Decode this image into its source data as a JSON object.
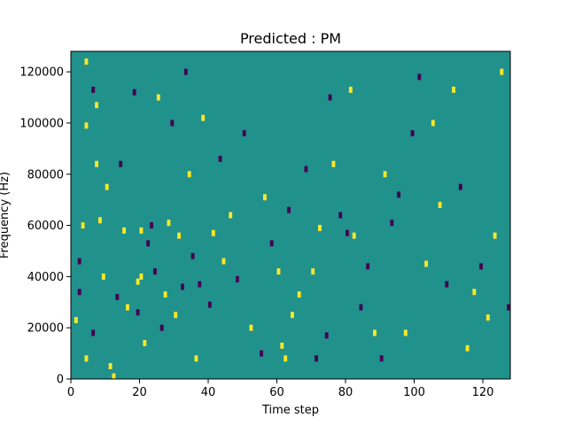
{
  "chart_data": {
    "type": "heatmap",
    "title": "Predicted : PM",
    "xlabel": "Time step",
    "ylabel": "Frequency (Hz)",
    "xlim": [
      0,
      128
    ],
    "ylim": [
      0,
      128000
    ],
    "x_ticks": [
      0,
      20,
      40,
      60,
      80,
      100,
      120
    ],
    "y_ticks": [
      0,
      20000,
      40000,
      60000,
      80000,
      100000,
      120000
    ],
    "x_tick_labels": [
      "0",
      "20",
      "40",
      "60",
      "80",
      "100",
      "120"
    ],
    "y_tick_labels": [
      "0",
      "20000",
      "40000",
      "60000",
      "80000",
      "100000",
      "120000"
    ],
    "colors": {
      "background": "#21918c",
      "high": "#fde725",
      "low": "#440154"
    },
    "grid": false,
    "cells": [
      {
        "t": 1,
        "f": 23000,
        "level": "high"
      },
      {
        "t": 2,
        "f": 46000,
        "level": "low"
      },
      {
        "t": 2,
        "f": 34000,
        "level": "low"
      },
      {
        "t": 3,
        "f": 60000,
        "level": "high"
      },
      {
        "t": 4,
        "f": 8000,
        "level": "high"
      },
      {
        "t": 4,
        "f": 99000,
        "level": "high"
      },
      {
        "t": 4,
        "f": 124000,
        "level": "high"
      },
      {
        "t": 6,
        "f": 113000,
        "level": "low"
      },
      {
        "t": 6,
        "f": 18000,
        "level": "low"
      },
      {
        "t": 7,
        "f": 107000,
        "level": "high"
      },
      {
        "t": 7,
        "f": 84000,
        "level": "high"
      },
      {
        "t": 8,
        "f": 62000,
        "level": "high"
      },
      {
        "t": 9,
        "f": 40000,
        "level": "high"
      },
      {
        "t": 10,
        "f": 75000,
        "level": "high"
      },
      {
        "t": 11,
        "f": 5000,
        "level": "high"
      },
      {
        "t": 12,
        "f": 1000,
        "level": "high"
      },
      {
        "t": 13,
        "f": 32000,
        "level": "low"
      },
      {
        "t": 14,
        "f": 84000,
        "level": "low"
      },
      {
        "t": 15,
        "f": 58000,
        "level": "high"
      },
      {
        "t": 16,
        "f": 28000,
        "level": "high"
      },
      {
        "t": 18,
        "f": 112000,
        "level": "low"
      },
      {
        "t": 19,
        "f": 26000,
        "level": "low"
      },
      {
        "t": 19,
        "f": 38000,
        "level": "high"
      },
      {
        "t": 20,
        "f": 40000,
        "level": "high"
      },
      {
        "t": 20,
        "f": 58000,
        "level": "high"
      },
      {
        "t": 21,
        "f": 14000,
        "level": "high"
      },
      {
        "t": 22,
        "f": 53000,
        "level": "low"
      },
      {
        "t": 23,
        "f": 60000,
        "level": "low"
      },
      {
        "t": 24,
        "f": 42000,
        "level": "low"
      },
      {
        "t": 25,
        "f": 110000,
        "level": "high"
      },
      {
        "t": 26,
        "f": 20000,
        "level": "low"
      },
      {
        "t": 27,
        "f": 33000,
        "level": "high"
      },
      {
        "t": 28,
        "f": 61000,
        "level": "high"
      },
      {
        "t": 29,
        "f": 100000,
        "level": "low"
      },
      {
        "t": 30,
        "f": 25000,
        "level": "high"
      },
      {
        "t": 31,
        "f": 56000,
        "level": "high"
      },
      {
        "t": 32,
        "f": 36000,
        "level": "low"
      },
      {
        "t": 33,
        "f": 120000,
        "level": "low"
      },
      {
        "t": 34,
        "f": 80000,
        "level": "high"
      },
      {
        "t": 35,
        "f": 48000,
        "level": "low"
      },
      {
        "t": 36,
        "f": 8000,
        "level": "high"
      },
      {
        "t": 37,
        "f": 37000,
        "level": "low"
      },
      {
        "t": 38,
        "f": 102000,
        "level": "high"
      },
      {
        "t": 40,
        "f": 29000,
        "level": "low"
      },
      {
        "t": 41,
        "f": 57000,
        "level": "high"
      },
      {
        "t": 43,
        "f": 86000,
        "level": "low"
      },
      {
        "t": 44,
        "f": 46000,
        "level": "high"
      },
      {
        "t": 46,
        "f": 64000,
        "level": "high"
      },
      {
        "t": 48,
        "f": 39000,
        "level": "low"
      },
      {
        "t": 50,
        "f": 96000,
        "level": "low"
      },
      {
        "t": 52,
        "f": 20000,
        "level": "high"
      },
      {
        "t": 55,
        "f": 10000,
        "level": "low"
      },
      {
        "t": 56,
        "f": 71000,
        "level": "high"
      },
      {
        "t": 58,
        "f": 53000,
        "level": "low"
      },
      {
        "t": 60,
        "f": 42000,
        "level": "high"
      },
      {
        "t": 61,
        "f": 13000,
        "level": "high"
      },
      {
        "t": 62,
        "f": 8000,
        "level": "high"
      },
      {
        "t": 63,
        "f": 66000,
        "level": "low"
      },
      {
        "t": 64,
        "f": 25000,
        "level": "high"
      },
      {
        "t": 66,
        "f": 33000,
        "level": "high"
      },
      {
        "t": 68,
        "f": 82000,
        "level": "low"
      },
      {
        "t": 70,
        "f": 42000,
        "level": "high"
      },
      {
        "t": 71,
        "f": 8000,
        "level": "low"
      },
      {
        "t": 72,
        "f": 59000,
        "level": "high"
      },
      {
        "t": 74,
        "f": 17000,
        "level": "low"
      },
      {
        "t": 75,
        "f": 110000,
        "level": "low"
      },
      {
        "t": 76,
        "f": 84000,
        "level": "high"
      },
      {
        "t": 78,
        "f": 64000,
        "level": "low"
      },
      {
        "t": 80,
        "f": 57000,
        "level": "low"
      },
      {
        "t": 81,
        "f": 113000,
        "level": "high"
      },
      {
        "t": 82,
        "f": 56000,
        "level": "high"
      },
      {
        "t": 84,
        "f": 28000,
        "level": "low"
      },
      {
        "t": 86,
        "f": 44000,
        "level": "low"
      },
      {
        "t": 88,
        "f": 18000,
        "level": "high"
      },
      {
        "t": 90,
        "f": 8000,
        "level": "low"
      },
      {
        "t": 91,
        "f": 80000,
        "level": "high"
      },
      {
        "t": 93,
        "f": 61000,
        "level": "low"
      },
      {
        "t": 95,
        "f": 72000,
        "level": "low"
      },
      {
        "t": 97,
        "f": 18000,
        "level": "high"
      },
      {
        "t": 99,
        "f": 96000,
        "level": "low"
      },
      {
        "t": 101,
        "f": 118000,
        "level": "low"
      },
      {
        "t": 103,
        "f": 45000,
        "level": "high"
      },
      {
        "t": 105,
        "f": 100000,
        "level": "high"
      },
      {
        "t": 107,
        "f": 68000,
        "level": "high"
      },
      {
        "t": 109,
        "f": 37000,
        "level": "low"
      },
      {
        "t": 111,
        "f": 113000,
        "level": "high"
      },
      {
        "t": 113,
        "f": 75000,
        "level": "low"
      },
      {
        "t": 115,
        "f": 12000,
        "level": "high"
      },
      {
        "t": 117,
        "f": 34000,
        "level": "high"
      },
      {
        "t": 119,
        "f": 44000,
        "level": "low"
      },
      {
        "t": 121,
        "f": 24000,
        "level": "high"
      },
      {
        "t": 123,
        "f": 56000,
        "level": "high"
      },
      {
        "t": 125,
        "f": 120000,
        "level": "high"
      },
      {
        "t": 127,
        "f": 28000,
        "level": "low"
      }
    ]
  }
}
